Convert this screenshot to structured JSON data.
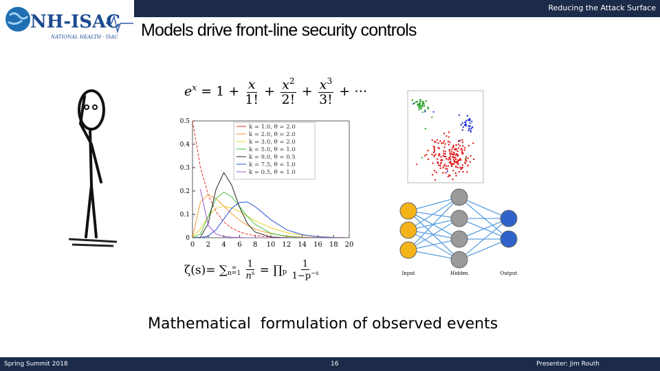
{
  "header": {
    "logo_text": "NH-ISAC",
    "logo_subtext": "NATIONAL HEALTH · ISAC",
    "section": "Reducing the Attack Surface",
    "title": "Models drive front-line security controls"
  },
  "formulas": {
    "exponential": {
      "lhs_base": "e",
      "lhs_exp": "x",
      "eq": "= 1 +",
      "t1_num": "x",
      "t1_den": "1!",
      "plus1": "+",
      "t2_num": "x",
      "t2_exp": "2",
      "t2_den": "2!",
      "plus2": "+",
      "t3_num": "x",
      "t3_exp": "3",
      "t3_den": "3!",
      "tail": "+ ⋯"
    },
    "zeta": {
      "lhs": "ζ(s)=",
      "sum": "∑",
      "sum_top": "∞",
      "sum_bottom": "n=1",
      "f1_num": "1",
      "f1_den_base": "n",
      "f1_den_exp": "s",
      "eq": "=",
      "prod": "∏",
      "prod_sub": "p",
      "f2_num": "1",
      "f2_den_base": "1−p",
      "f2_den_exp": "−s"
    }
  },
  "chart_data": {
    "type": "line",
    "x": [
      0,
      1,
      2,
      3,
      4,
      5,
      6,
      7,
      8,
      10,
      12,
      14,
      16,
      18,
      20
    ],
    "series": [
      {
        "name": "k = 1.0, θ = 2.0",
        "color": "#e8302a",
        "values": [
          0.5,
          0.303,
          0.184,
          0.112,
          0.068,
          0.041,
          0.025,
          0.015,
          0.009,
          0.003,
          0.001,
          0,
          0,
          0,
          0
        ]
      },
      {
        "name": "k = 2.0, θ = 2.0",
        "color": "#f29a2e",
        "values": [
          0,
          0.152,
          0.184,
          0.167,
          0.135,
          0.103,
          0.075,
          0.053,
          0.037,
          0.017,
          0.007,
          0.003,
          0.001,
          0,
          0
        ]
      },
      {
        "name": "k = 3.0, θ = 2.0",
        "color": "#e6d22a",
        "values": [
          0,
          0.038,
          0.092,
          0.126,
          0.135,
          0.128,
          0.112,
          0.092,
          0.073,
          0.042,
          0.022,
          0.011,
          0.005,
          0.002,
          0.001
        ]
      },
      {
        "name": "k = 5.0, θ = 1.0",
        "color": "#3fbf3f",
        "values": [
          0,
          0.015,
          0.09,
          0.168,
          0.195,
          0.175,
          0.134,
          0.091,
          0.057,
          0.019,
          0.005,
          0.001,
          0,
          0,
          0
        ]
      },
      {
        "name": "k = 9.0, θ = 0.5",
        "color": "#222222",
        "values": [
          0,
          0.002,
          0.06,
          0.207,
          0.279,
          0.225,
          0.131,
          0.061,
          0.024,
          0.003,
          0,
          0,
          0,
          0,
          0
        ]
      },
      {
        "name": "k = 7.5, θ = 1.0",
        "color": "#2a4fd6",
        "values": [
          0,
          0,
          0.007,
          0.034,
          0.08,
          0.126,
          0.151,
          0.153,
          0.133,
          0.077,
          0.034,
          0.013,
          0.004,
          0.001,
          0
        ]
      },
      {
        "name": "k = 0.5, θ = 1.0",
        "color": "#9b59d0",
        "values": [
          null,
          0.208,
          0.054,
          0.016,
          0.005,
          0.002,
          0.001,
          0,
          0,
          0,
          0,
          0,
          0,
          0,
          0
        ]
      }
    ],
    "xlim": [
      0,
      20
    ],
    "ylim": [
      0,
      0.5
    ],
    "xticks": [
      0,
      2,
      4,
      6,
      8,
      10,
      12,
      14,
      16,
      18,
      20
    ],
    "yticks": [
      0,
      0.1,
      0.2,
      0.3,
      0.4,
      0.5
    ],
    "grid": false,
    "legend": "upper-right"
  },
  "network": {
    "labels": [
      "Input",
      "Hidden",
      "Output"
    ]
  },
  "caption": "Mathematical  formulation of observed events",
  "footer": {
    "left": "Spring Summit 2018",
    "page": "16",
    "right": "Presenter: Jim Routh"
  }
}
